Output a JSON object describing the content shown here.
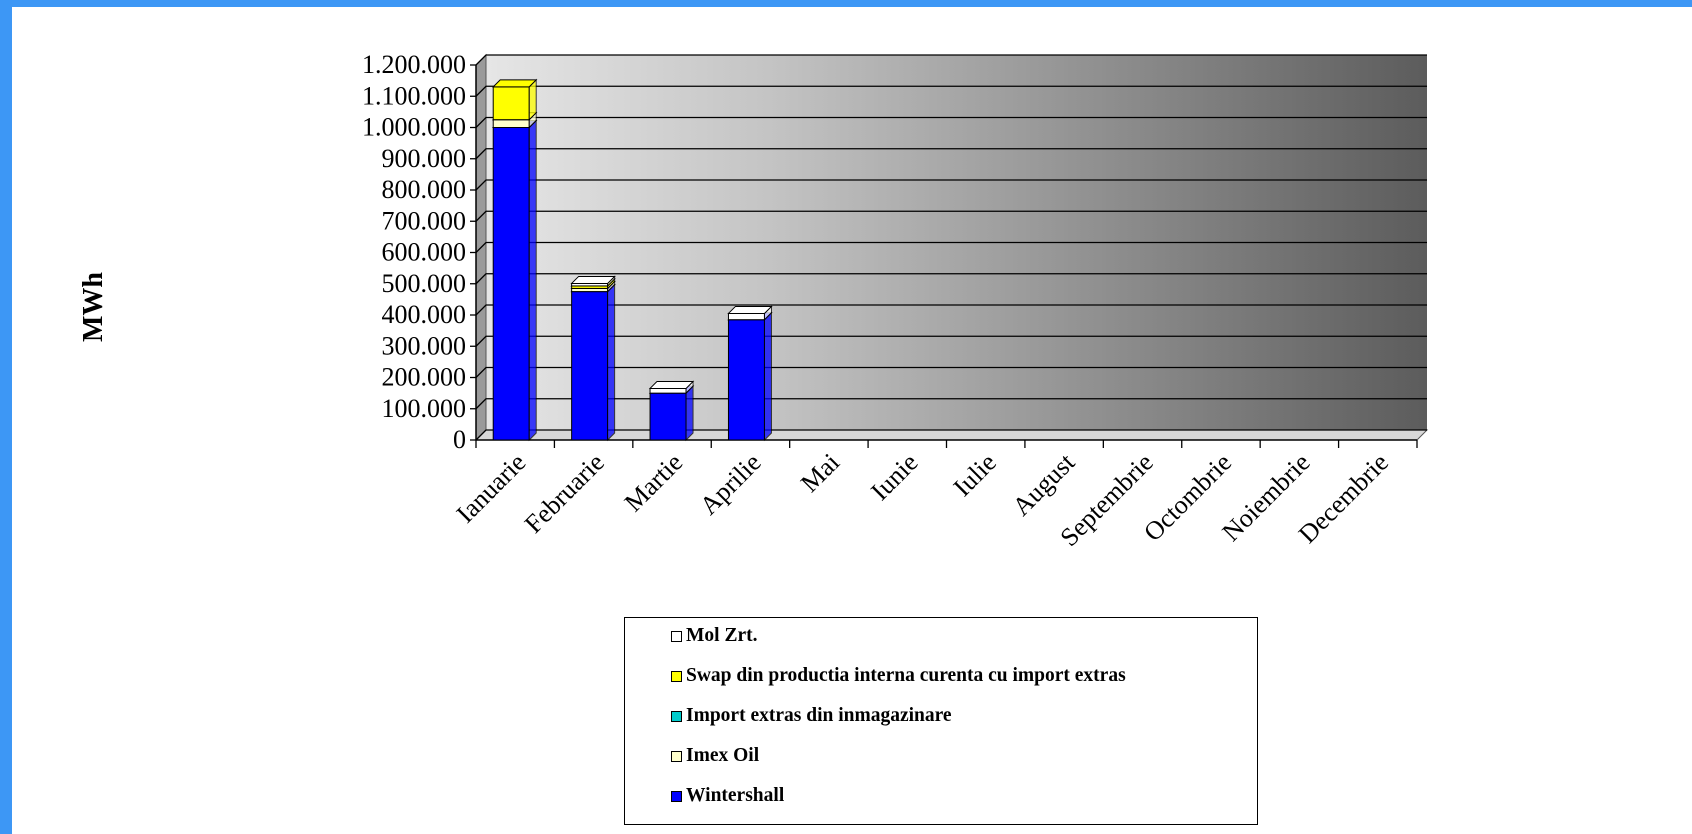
{
  "chart_data": {
    "type": "bar",
    "stacked": true,
    "ylabel": "MWh",
    "ylim": [
      0,
      1200000
    ],
    "yticks": [
      "0",
      "100.000",
      "200.000",
      "300.000",
      "400.000",
      "500.000",
      "600.000",
      "700.000",
      "800.000",
      "900.000",
      "1.000.000",
      "1.100.000",
      "1.200.000"
    ],
    "categories": [
      "Ianuarie",
      "Februarie",
      "Martie",
      "Aprilie",
      "Mai",
      "Iunie",
      "Iulie",
      "August",
      "Septembrie",
      "Octombrie",
      "Noiembrie",
      "Decembrie"
    ],
    "series": [
      {
        "name": "Wintershall",
        "color": "#0000ff",
        "values": [
          1000000,
          475000,
          150000,
          385000,
          0,
          0,
          0,
          0,
          0,
          0,
          0,
          0
        ]
      },
      {
        "name": "Imex Oil",
        "color": "#ffffcc",
        "values": [
          25000,
          10000,
          0,
          0,
          0,
          0,
          0,
          0,
          0,
          0,
          0,
          0
        ]
      },
      {
        "name": "Import extras din inmagazinare",
        "color": "#00cccc",
        "values": [
          0,
          0,
          0,
          0,
          0,
          0,
          0,
          0,
          0,
          0,
          0,
          0
        ]
      },
      {
        "name": "Swap din productia interna curenta cu import extras",
        "color": "#ffff00",
        "values": [
          105000,
          8000,
          0,
          0,
          0,
          0,
          0,
          0,
          0,
          0,
          0,
          0
        ]
      },
      {
        "name": "Mol Zrt.",
        "color": "#ffffff",
        "values": [
          0,
          8000,
          15000,
          20000,
          0,
          0,
          0,
          0,
          0,
          0,
          0,
          0
        ]
      }
    ],
    "legend_position": "bottom",
    "grid": true
  }
}
